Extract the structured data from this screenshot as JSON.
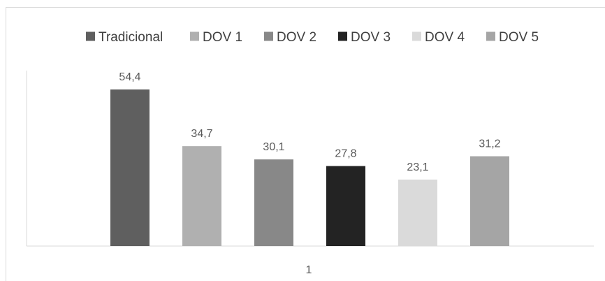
{
  "chart_data": {
    "type": "bar",
    "categories": [
      "1"
    ],
    "series": [
      {
        "name": "Tradicional",
        "values": [
          54.4
        ],
        "color": "#5f5f5f",
        "label": "54,4"
      },
      {
        "name": "DOV 1",
        "values": [
          34.7
        ],
        "color": "#b0b0b0",
        "label": "34,7"
      },
      {
        "name": "DOV 2",
        "values": [
          30.1
        ],
        "color": "#888888",
        "label": "30,1"
      },
      {
        "name": "DOV 3",
        "values": [
          27.8
        ],
        "color": "#232323",
        "label": "27,8"
      },
      {
        "name": "DOV 4",
        "values": [
          23.1
        ],
        "color": "#dadada",
        "label": "23,1"
      },
      {
        "name": "DOV 5",
        "values": [
          31.2
        ],
        "color": "#a5a5a5",
        "label": "31,2"
      }
    ],
    "ylim": [
      0,
      60
    ],
    "grid": false,
    "legend": "top",
    "title": "",
    "xlabel": "",
    "ylabel": ""
  }
}
